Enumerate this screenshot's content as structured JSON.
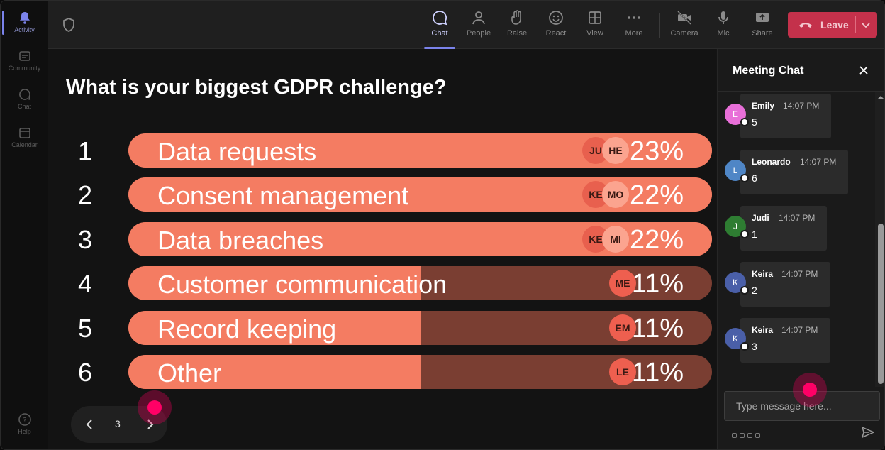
{
  "rail": {
    "items": [
      {
        "label": "Activity",
        "icon": "bell-icon",
        "active": true
      },
      {
        "label": "Community",
        "icon": "community-icon"
      },
      {
        "label": "Chat",
        "icon": "chat-icon"
      },
      {
        "label": "Calendar",
        "icon": "calendar-icon"
      }
    ],
    "help_label": "Help"
  },
  "toolbar": {
    "buttons": [
      {
        "label": "Chat",
        "icon": "chat-icon",
        "active": true
      },
      {
        "label": "People",
        "icon": "people-icon"
      },
      {
        "label": "Raise",
        "icon": "hand-icon"
      },
      {
        "label": "React",
        "icon": "smiley-icon"
      },
      {
        "label": "View",
        "icon": "grid-icon"
      },
      {
        "label": "More",
        "icon": "more-icon"
      },
      {
        "label": "Camera",
        "icon": "camera-off-icon"
      },
      {
        "label": "Mic",
        "icon": "mic-icon"
      },
      {
        "label": "Share",
        "icon": "share-icon"
      }
    ],
    "leave_label": "Leave",
    "leave_color": "#c4314b"
  },
  "poll": {
    "question": "What is your biggest GDPR challenge?",
    "options": [
      {
        "number": "1",
        "label": "Data requests",
        "percent_text": "23%",
        "fraction": 1.0,
        "avatars": [
          "JU",
          "HE"
        ]
      },
      {
        "number": "2",
        "label": "Consent management",
        "percent_text": "22%",
        "fraction": 1.0,
        "avatars": [
          "KE",
          "MO"
        ]
      },
      {
        "number": "3",
        "label": "Data breaches",
        "percent_text": "22%",
        "fraction": 1.0,
        "avatars": [
          "KE",
          "MI"
        ]
      },
      {
        "number": "4",
        "label": "Customer communication",
        "percent_text": "11%",
        "fraction": 0.5,
        "avatars": [
          "ME"
        ]
      },
      {
        "number": "5",
        "label": "Record keeping",
        "percent_text": "11%",
        "fraction": 0.5,
        "avatars": [
          "EM"
        ]
      },
      {
        "number": "6",
        "label": "Other",
        "percent_text": "11%",
        "fraction": 0.5,
        "avatars": [
          "LE"
        ]
      }
    ],
    "bar_color": "#f47c62",
    "bar_track_color": "#7a3e32"
  },
  "pager": {
    "page": "3"
  },
  "chat": {
    "title": "Meeting Chat",
    "messages": [
      {
        "initial": "E",
        "name": "Emily",
        "time": "14:07 PM",
        "text": "5",
        "color": "#e86fd8"
      },
      {
        "initial": "L",
        "name": "Leonardo",
        "time": "14:07 PM",
        "text": "6",
        "color": "#4f86c6"
      },
      {
        "initial": "J",
        "name": "Judi",
        "time": "14:07 PM",
        "text": "1",
        "color": "#2e7d32"
      },
      {
        "initial": "K",
        "name": "Keira",
        "time": "14:07 PM",
        "text": "2",
        "color": "#4a5fa8"
      },
      {
        "initial": "K",
        "name": "Keira",
        "time": "14:07 PM",
        "text": "3",
        "color": "#4a5fa8"
      }
    ],
    "input_placeholder": "Type message here..."
  }
}
